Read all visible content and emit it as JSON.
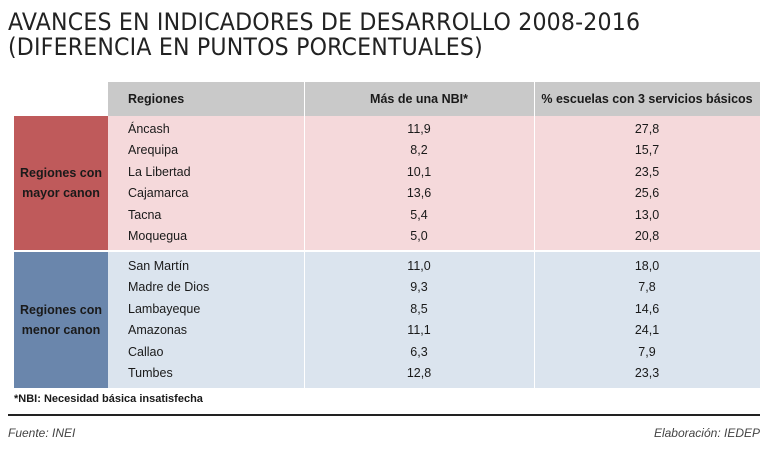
{
  "title": {
    "line1": "AVANCES EN INDICADORES DE DESARROLLO 2008-2016",
    "line2": "(DIFERENCIA EN PUNTOS PORCENTUALES)"
  },
  "table": {
    "headers": {
      "regions": "Regiones",
      "nbi": "Más de una NBI*",
      "schools": "% escuelas con 3 servicios básicos"
    },
    "groups": [
      {
        "label": "Regiones con mayor canon",
        "color": "#bf5a5b",
        "rows": [
          {
            "region": "Áncash",
            "nbi": "11,9",
            "schools": "27,8"
          },
          {
            "region": "Arequipa",
            "nbi": "8,2",
            "schools": "15,7"
          },
          {
            "region": "La Libertad",
            "nbi": "10,1",
            "schools": "23,5"
          },
          {
            "region": "Cajamarca",
            "nbi": "13,6",
            "schools": "25,6"
          },
          {
            "region": "Tacna",
            "nbi": "5,4",
            "schools": "13,0"
          },
          {
            "region": "Moquegua",
            "nbi": "5,0",
            "schools": "20,8"
          }
        ]
      },
      {
        "label": "Regiones con menor canon",
        "color": "#6a86ac",
        "rows": [
          {
            "region": "San Martín",
            "nbi": "11,0",
            "schools": "18,0"
          },
          {
            "region": "Madre de Dios",
            "nbi": "9,3",
            "schools": "7,8"
          },
          {
            "region": "Lambayeque",
            "nbi": "8,5",
            "schools": "14,6"
          },
          {
            "region": "Amazonas",
            "nbi": "11,1",
            "schools": "24,1"
          },
          {
            "region": "Callao",
            "nbi": "6,3",
            "schools": "7,9"
          },
          {
            "region": "Tumbes",
            "nbi": "12,8",
            "schools": "23,3"
          }
        ]
      }
    ]
  },
  "footnote": "*NBI: Necesidad básica insatisfecha",
  "source": "Fuente: INEI",
  "credit": "Elaboración: IEDEP"
}
